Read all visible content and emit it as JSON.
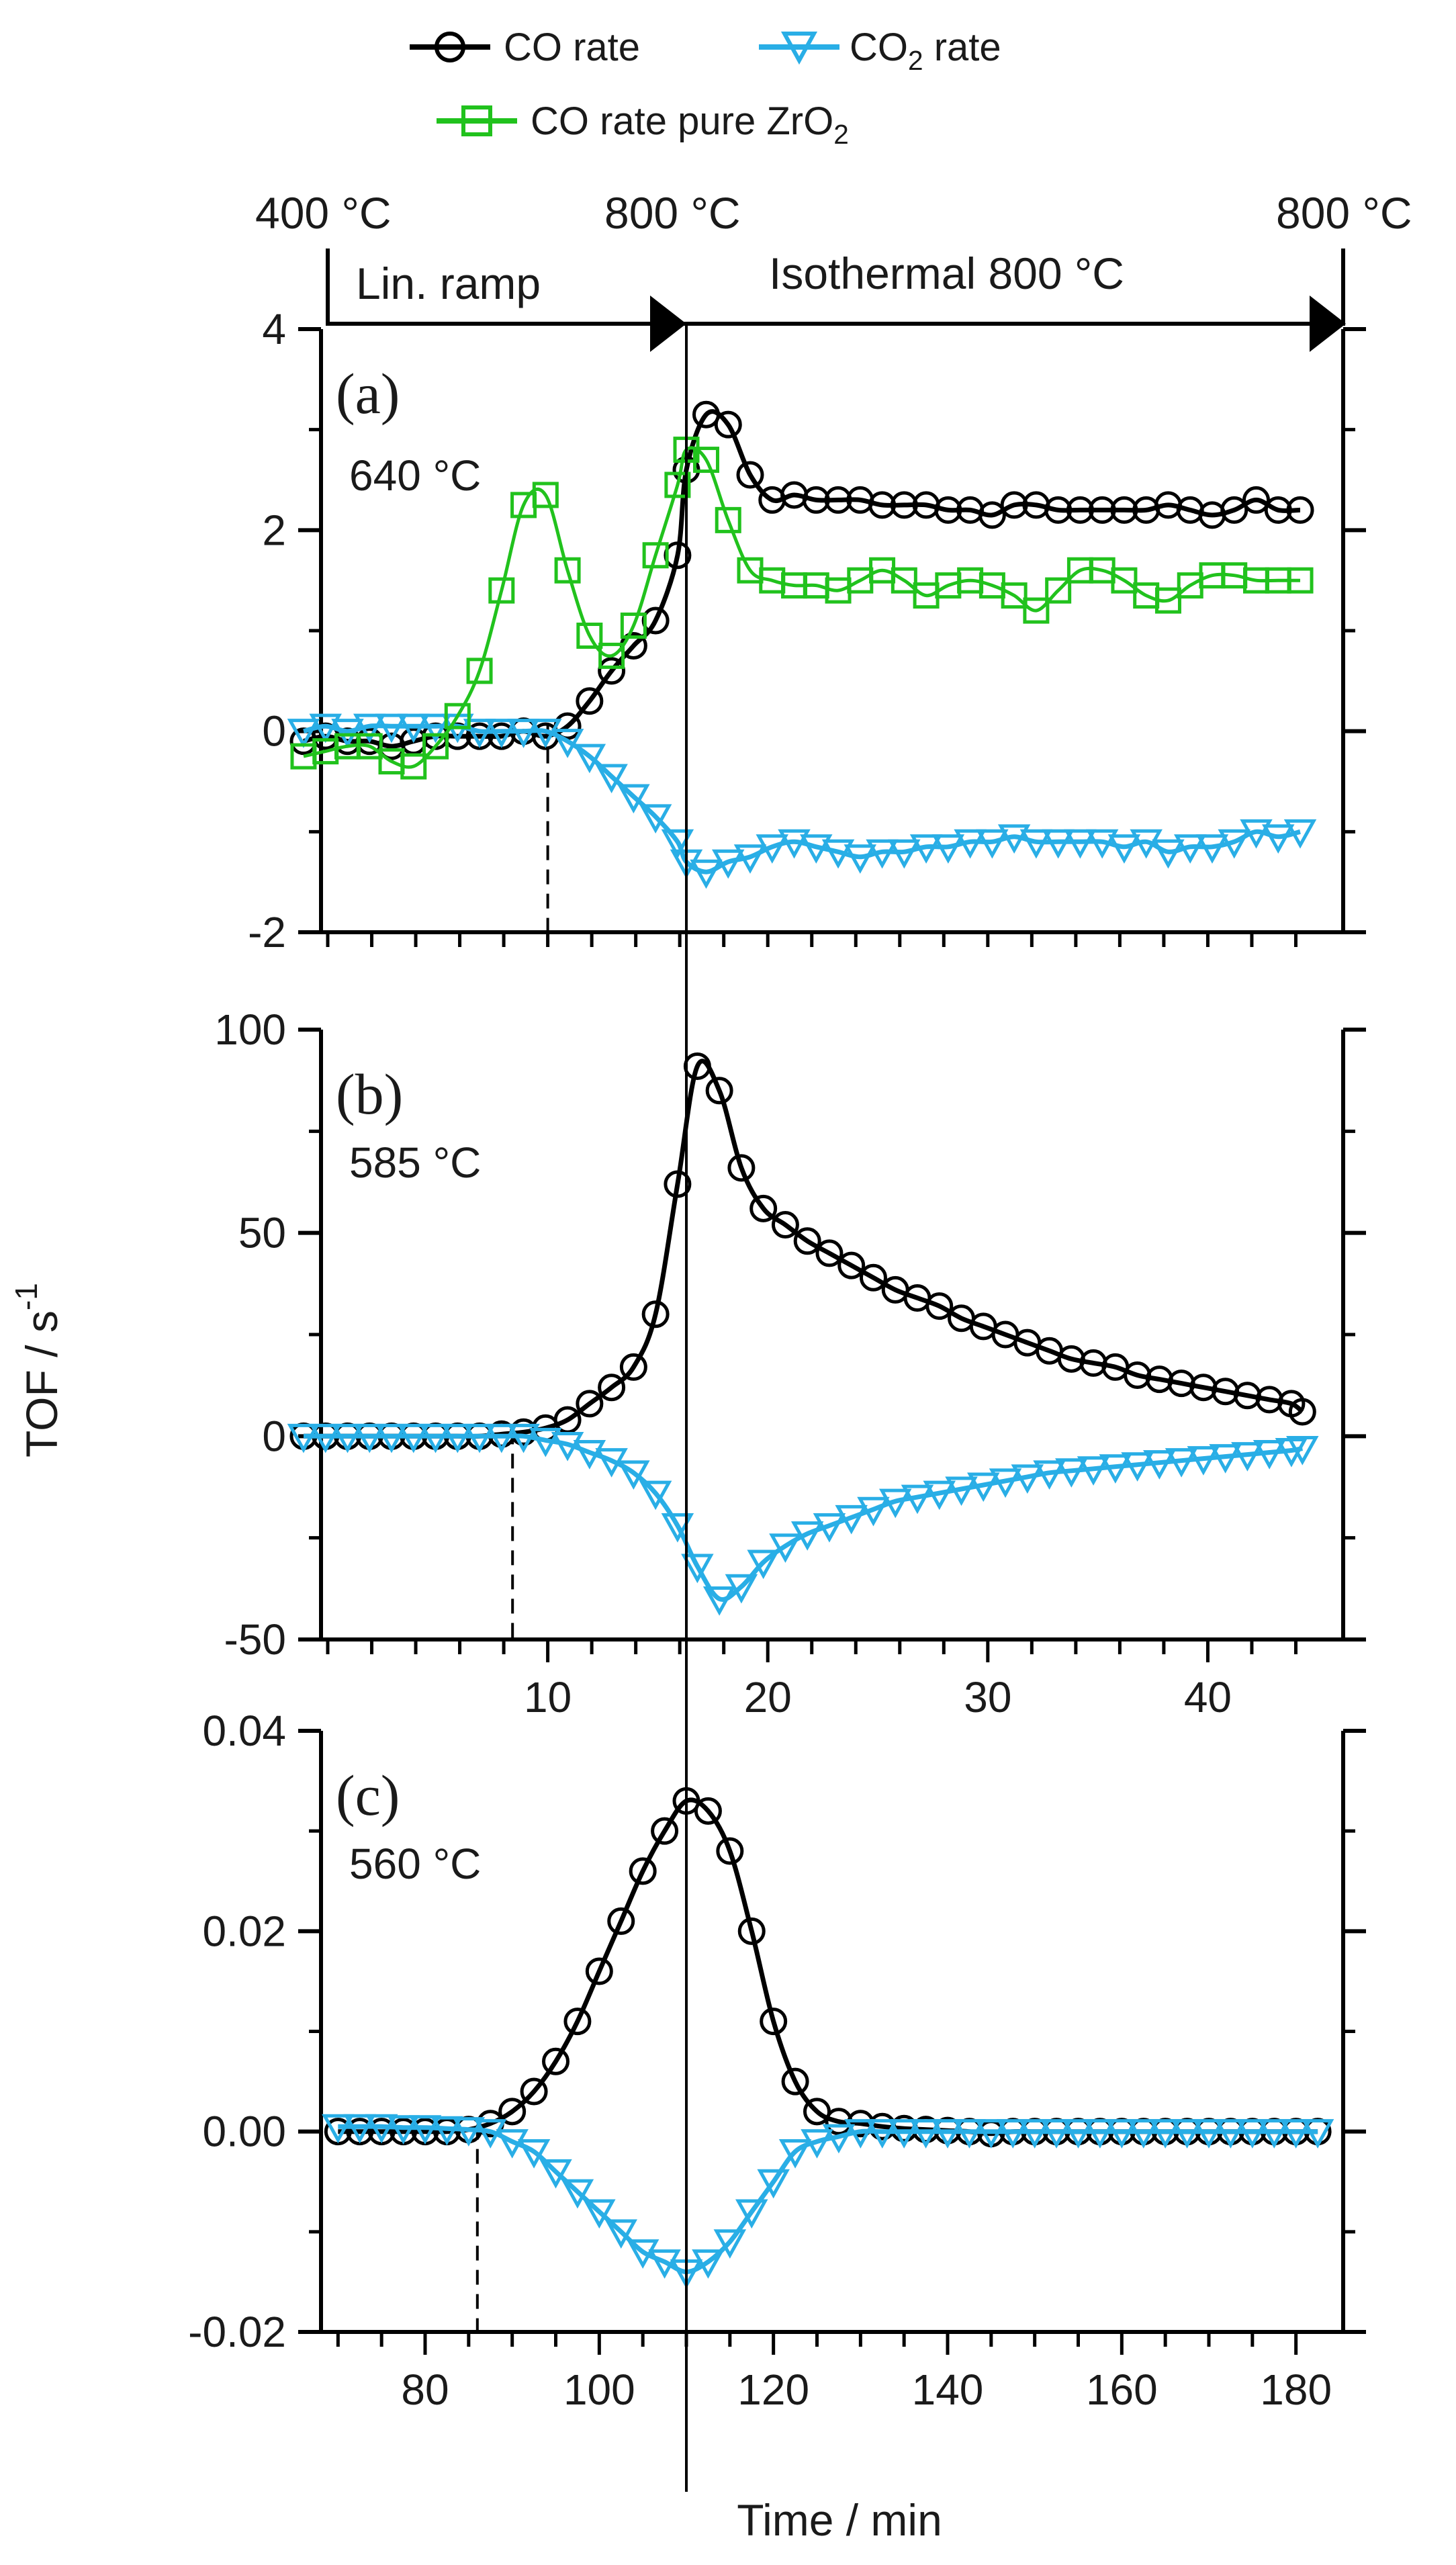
{
  "figure": {
    "legend": [
      {
        "label": "CO rate",
        "color": "#000000",
        "marker": "circle"
      },
      {
        "label_main": "CO",
        "label_sub": "2",
        "label_tail": " rate",
        "color": "#29aee6",
        "marker": "triangle-down"
      },
      {
        "label_main": "CO rate pure ZrO",
        "label_sub": "2",
        "label_tail": "",
        "color": "#21c21d",
        "marker": "square"
      }
    ],
    "timeline": {
      "start_temp": "400 °C",
      "mid_temp": "800 °C",
      "end_temp": "800 °C",
      "ramp_label": "Lin. ramp",
      "iso_label": "Isothermal 800 °C"
    },
    "y_label_main": "TOF / s",
    "y_label_sup": "-1",
    "x_label": "Time / min",
    "colors": {
      "co": "#000000",
      "co2": "#29aee6",
      "zro2": "#21c21d"
    }
  },
  "chart_data": [
    {
      "type": "line",
      "panel_label": "(a)",
      "annotation": "640 °C",
      "annotation_x": 10.0,
      "isothermal_start_x": 16.3,
      "xlim": [
        -1.5,
        44.8
      ],
      "ylim": [
        -2,
        4
      ],
      "yticks": [
        -2,
        0,
        2,
        4
      ],
      "ytick_labels": [
        "-2",
        "0",
        "2",
        "4"
      ],
      "xticks": [],
      "xtick_labels": [],
      "series": [
        {
          "name": "CO rate",
          "marker": "circle",
          "color": "#000000",
          "x": [
            -1.1,
            -0.1,
            0.9,
            1.9,
            2.9,
            3.9,
            4.9,
            5.9,
            6.9,
            7.9,
            8.9,
            9.9,
            10.9,
            11.9,
            12.9,
            13.9,
            14.9,
            15.9,
            16.3,
            17.2,
            18.2,
            19.2,
            20.2,
            21.2,
            22.2,
            23.2,
            24.2,
            25.2,
            26.2,
            27.2,
            28.2,
            29.2,
            30.2,
            31.2,
            32.2,
            33.2,
            34.2,
            35.2,
            36.2,
            37.2,
            38.2,
            39.2,
            40.2,
            41.2,
            42.2,
            43.2,
            44.2
          ],
          "values": [
            -0.1,
            -0.05,
            -0.1,
            -0.1,
            -0.15,
            -0.1,
            -0.05,
            -0.05,
            -0.05,
            -0.05,
            0.0,
            -0.05,
            0.05,
            0.3,
            0.6,
            0.85,
            1.1,
            1.75,
            2.6,
            3.15,
            3.05,
            2.55,
            2.3,
            2.35,
            2.3,
            2.3,
            2.3,
            2.25,
            2.25,
            2.25,
            2.2,
            2.2,
            2.15,
            2.25,
            2.25,
            2.2,
            2.2,
            2.2,
            2.2,
            2.2,
            2.25,
            2.2,
            2.15,
            2.2,
            2.3,
            2.2,
            2.2
          ]
        },
        {
          "name": "CO2 rate",
          "marker": "triangle-down",
          "color": "#29aee6",
          "x": [
            -1.1,
            -0.1,
            0.9,
            1.9,
            2.9,
            3.9,
            4.9,
            5.9,
            6.9,
            7.9,
            8.9,
            9.9,
            10.9,
            11.9,
            12.9,
            13.9,
            14.9,
            15.9,
            16.3,
            17.2,
            18.2,
            19.2,
            20.2,
            21.2,
            22.2,
            23.2,
            24.2,
            25.2,
            26.2,
            27.2,
            28.2,
            29.2,
            30.2,
            31.2,
            32.2,
            33.2,
            34.2,
            35.2,
            36.2,
            37.2,
            38.2,
            39.2,
            40.2,
            41.2,
            42.2,
            43.2,
            44.2
          ],
          "values": [
            0.0,
            0.05,
            0.0,
            0.05,
            0.05,
            0.05,
            0.05,
            0.05,
            0.0,
            0.0,
            0.0,
            0.0,
            -0.1,
            -0.25,
            -0.45,
            -0.65,
            -0.85,
            -1.1,
            -1.3,
            -1.4,
            -1.3,
            -1.25,
            -1.15,
            -1.1,
            -1.15,
            -1.2,
            -1.25,
            -1.2,
            -1.2,
            -1.15,
            -1.15,
            -1.1,
            -1.1,
            -1.05,
            -1.1,
            -1.1,
            -1.1,
            -1.1,
            -1.15,
            -1.1,
            -1.2,
            -1.15,
            -1.15,
            -1.1,
            -1.0,
            -1.05,
            -1.0
          ]
        },
        {
          "name": "CO rate pure ZrO2",
          "marker": "square",
          "color": "#21c21d",
          "x": [
            -1.1,
            -0.1,
            0.9,
            1.9,
            2.9,
            3.9,
            4.9,
            5.9,
            6.9,
            7.9,
            8.9,
            9.9,
            10.9,
            11.9,
            12.9,
            13.9,
            14.9,
            15.9,
            16.3,
            17.2,
            18.2,
            19.2,
            20.2,
            21.2,
            22.2,
            23.2,
            24.2,
            25.2,
            26.2,
            27.2,
            28.2,
            29.2,
            30.2,
            31.2,
            32.2,
            33.2,
            34.2,
            35.2,
            36.2,
            37.2,
            38.2,
            39.2,
            40.2,
            41.2,
            42.2,
            43.2,
            44.2
          ],
          "values": [
            -0.25,
            -0.2,
            -0.15,
            -0.15,
            -0.3,
            -0.35,
            -0.15,
            0.15,
            0.6,
            1.4,
            2.25,
            2.35,
            1.6,
            0.95,
            0.75,
            1.05,
            1.75,
            2.45,
            2.8,
            2.7,
            2.1,
            1.6,
            1.5,
            1.45,
            1.45,
            1.4,
            1.5,
            1.6,
            1.5,
            1.35,
            1.45,
            1.5,
            1.45,
            1.35,
            1.2,
            1.4,
            1.6,
            1.6,
            1.5,
            1.35,
            1.3,
            1.45,
            1.55,
            1.55,
            1.5,
            1.5,
            1.5
          ]
        }
      ]
    },
    {
      "type": "line",
      "panel_label": "(b)",
      "annotation": "585 °C",
      "annotation_x": 8.4,
      "isothermal_start_x": 16.3,
      "xlim": [
        -1.5,
        44.8
      ],
      "ylim": [
        -50,
        100
      ],
      "yticks": [
        -50,
        0,
        50,
        100
      ],
      "ytick_labels": [
        "-50",
        "0",
        "50",
        "100"
      ],
      "xticks": [
        10,
        20,
        30,
        40
      ],
      "xtick_labels": [
        "10",
        "20",
        "30",
        "40"
      ],
      "series": [
        {
          "name": "CO rate",
          "marker": "circle",
          "color": "#000000",
          "x": [
            -1.1,
            -0.1,
            0.9,
            1.9,
            2.9,
            3.9,
            4.9,
            5.9,
            6.9,
            7.9,
            8.9,
            9.9,
            10.9,
            11.9,
            12.9,
            13.9,
            14.9,
            15.9,
            16.8,
            17.8,
            18.8,
            19.8,
            20.8,
            21.8,
            22.8,
            23.8,
            24.8,
            25.8,
            26.8,
            27.8,
            28.8,
            29.8,
            30.8,
            31.8,
            32.8,
            33.8,
            34.8,
            35.8,
            36.8,
            37.8,
            38.8,
            39.8,
            40.8,
            41.8,
            42.8,
            43.8,
            44.3
          ],
          "values": [
            0,
            0,
            0,
            0,
            0,
            0,
            0,
            0,
            0,
            0.5,
            1,
            2,
            4,
            8,
            12,
            17,
            30,
            62,
            91,
            85,
            66,
            56,
            52,
            48,
            45,
            42,
            39,
            36,
            34,
            32,
            29,
            27,
            25,
            23,
            21,
            19,
            18,
            17,
            15,
            14,
            13,
            12,
            11,
            10,
            9,
            8,
            6
          ]
        },
        {
          "name": "CO2 rate",
          "marker": "triangle-down",
          "color": "#29aee6",
          "x": [
            -1.1,
            -0.1,
            0.9,
            1.9,
            2.9,
            3.9,
            4.9,
            5.9,
            6.9,
            7.9,
            8.9,
            9.9,
            10.9,
            11.9,
            12.9,
            13.9,
            14.9,
            15.9,
            16.8,
            17.8,
            18.8,
            19.8,
            20.8,
            21.8,
            22.8,
            23.8,
            24.8,
            25.8,
            26.8,
            27.8,
            28.8,
            29.8,
            30.8,
            31.8,
            32.8,
            33.8,
            34.8,
            35.8,
            36.8,
            37.8,
            38.8,
            39.8,
            40.8,
            41.8,
            42.8,
            43.8,
            44.3
          ],
          "values": [
            0,
            0,
            0,
            0,
            0,
            0,
            0,
            0,
            0,
            0,
            0,
            -1,
            -2,
            -4,
            -6,
            -9,
            -14,
            -22,
            -32,
            -40,
            -37,
            -31,
            -27,
            -24,
            -22,
            -20,
            -18,
            -16,
            -15,
            -14,
            -13,
            -12,
            -11,
            -10,
            -9,
            -8.5,
            -8,
            -7.5,
            -7,
            -6.5,
            -6,
            -5.5,
            -5,
            -4.5,
            -4,
            -3.5,
            -3
          ]
        }
      ]
    },
    {
      "type": "line",
      "panel_label": "(c)",
      "annotation": "560 °C",
      "annotation_x": 86.0,
      "isothermal_start_x": 110.0,
      "xlim": [
        68.0,
        183.0
      ],
      "ylim": [
        -0.02,
        0.04
      ],
      "yticks": [
        -0.02,
        0.0,
        0.02,
        0.04
      ],
      "ytick_labels": [
        "-0.02",
        "0.00",
        "0.02",
        "0.04"
      ],
      "xticks": [
        80,
        100,
        120,
        140,
        160,
        180
      ],
      "xtick_labels": [
        "80",
        "100",
        "120",
        "140",
        "160",
        "180"
      ],
      "series": [
        {
          "name": "CO rate",
          "marker": "circle",
          "color": "#000000",
          "x": [
            70,
            72.5,
            75,
            77.5,
            80,
            82.5,
            85,
            87.5,
            90,
            92.5,
            95,
            97.5,
            100,
            102.5,
            105,
            107.5,
            110,
            112.5,
            115,
            117.5,
            120,
            122.5,
            125,
            127.5,
            130,
            132.5,
            135,
            137.5,
            140,
            142.5,
            145,
            147.5,
            150,
            152.5,
            155,
            157.5,
            160,
            162.5,
            165,
            167.5,
            170,
            172.5,
            175,
            177.5,
            180,
            182.5
          ],
          "values": [
            0.0,
            0.0,
            0.0,
            0.0,
            0.0,
            0.0,
            0.0002,
            0.0008,
            0.002,
            0.004,
            0.007,
            0.011,
            0.016,
            0.021,
            0.026,
            0.03,
            0.033,
            0.032,
            0.028,
            0.02,
            0.011,
            0.005,
            0.002,
            0.001,
            0.0008,
            0.0005,
            0.0003,
            0.0002,
            0.0001,
            0.0,
            -0.0002,
            0.0,
            0.0,
            0.0,
            0.0,
            0.0,
            0.0,
            0.0,
            0.0,
            0.0,
            0.0,
            0.0,
            0.0,
            0.0,
            0.0,
            0.0
          ]
        },
        {
          "name": "CO2 rate",
          "marker": "triangle-down",
          "color": "#29aee6",
          "x": [
            70,
            72.5,
            75,
            77.5,
            80,
            82.5,
            85,
            87.5,
            90,
            92.5,
            95,
            97.5,
            100,
            102.5,
            105,
            107.5,
            110,
            112.5,
            115,
            117.5,
            120,
            122.5,
            125,
            127.5,
            130,
            132.5,
            135,
            137.5,
            140,
            142.5,
            145,
            147.5,
            150,
            152.5,
            155,
            157.5,
            160,
            162.5,
            165,
            167.5,
            170,
            172.5,
            175,
            177.5,
            180,
            182.5
          ],
          "values": [
            0.0005,
            0.0005,
            0.0005,
            0.0004,
            0.0004,
            0.0003,
            0.0002,
            0.0,
            -0.001,
            -0.002,
            -0.004,
            -0.006,
            -0.008,
            -0.01,
            -0.012,
            -0.013,
            -0.014,
            -0.013,
            -0.011,
            -0.008,
            -0.005,
            -0.002,
            -0.001,
            -0.0005,
            0.0,
            0.0,
            0.0,
            0.0,
            0.0,
            0.0,
            0.0,
            0.0,
            0.0,
            0.0,
            0.0,
            0.0,
            0.0,
            0.0,
            0.0,
            0.0,
            0.0,
            0.0,
            0.0,
            0.0,
            0.0,
            0.0
          ]
        }
      ]
    }
  ]
}
